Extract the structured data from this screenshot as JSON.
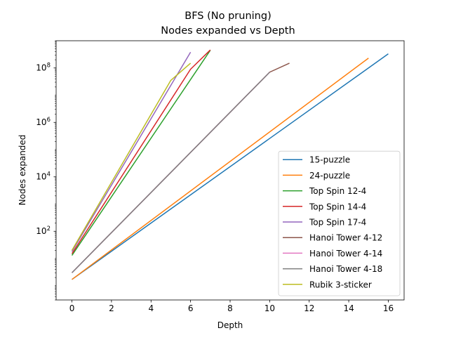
{
  "chart_data": {
    "type": "line",
    "title": "BFS (No pruning)",
    "subtitle": "Nodes expanded vs Depth",
    "xlabel": "Depth",
    "ylabel": "Nodes expanded",
    "xlim": [
      -0.8,
      16.8
    ],
    "ylim": [
      0.3,
      1000000000.0
    ],
    "yscale": "log",
    "xticks": [
      0,
      2,
      4,
      6,
      8,
      10,
      12,
      14,
      16
    ],
    "xtick_labels": [
      "0",
      "2",
      "4",
      "6",
      "8",
      "10",
      "12",
      "14",
      "16"
    ],
    "yticks": [
      100,
      10000,
      1000000,
      100000000
    ],
    "ytick_labels": [
      {
        "base": "10",
        "exp": "2"
      },
      {
        "base": "10",
        "exp": "4"
      },
      {
        "base": "10",
        "exp": "6"
      },
      {
        "base": "10",
        "exp": "8"
      }
    ],
    "grid": false,
    "legend_position": "lower-right",
    "series": [
      {
        "name": "15-puzzle",
        "color": "#1f77b4",
        "x": [
          0,
          16
        ],
        "y": [
          1.7,
          330000000
        ]
      },
      {
        "name": "24-puzzle",
        "color": "#ff7f0e",
        "x": [
          0,
          15
        ],
        "y": [
          1.7,
          230000000
        ]
      },
      {
        "name": "Top Spin 12-4",
        "color": "#2ca02c",
        "x": [
          0,
          7
        ],
        "y": [
          13,
          450000000
        ]
      },
      {
        "name": "Top Spin 14-4",
        "color": "#d62728",
        "x": [
          0,
          6,
          7
        ],
        "y": [
          15,
          90000000,
          460000000
        ]
      },
      {
        "name": "Top Spin 17-4",
        "color": "#9467bd",
        "x": [
          0,
          6
        ],
        "y": [
          18,
          380000000
        ]
      },
      {
        "name": "Hanoi Tower 4-12",
        "color": "#8c564b",
        "x": [
          0,
          10,
          11
        ],
        "y": [
          3,
          70000000,
          150000000
        ]
      },
      {
        "name": "Hanoi Tower 4-14",
        "color": "#e377c2",
        "x": [
          0,
          10
        ],
        "y": [
          3,
          70000000
        ]
      },
      {
        "name": "Hanoi Tower 4-18",
        "color": "#7f7f7f",
        "x": [
          0,
          10
        ],
        "y": [
          3,
          70000000
        ]
      },
      {
        "name": "Rubik 3-sticker",
        "color": "#bcbd22",
        "x": [
          0,
          5,
          6
        ],
        "y": [
          20,
          35000000,
          150000000
        ]
      }
    ]
  }
}
